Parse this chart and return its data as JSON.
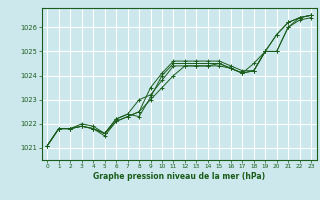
{
  "background_color": "#cce8ed",
  "plot_bg_color": "#cce8ed",
  "grid_color": "#ffffff",
  "line_color": "#1a5c1a",
  "text_color": "#1a5c1a",
  "xlabel": "Graphe pression niveau de la mer (hPa)",
  "xlim": [
    -0.5,
    23.5
  ],
  "ylim": [
    1020.5,
    1026.8
  ],
  "yticks": [
    1021,
    1022,
    1023,
    1024,
    1025,
    1026
  ],
  "xticks": [
    0,
    1,
    2,
    3,
    4,
    5,
    6,
    7,
    8,
    9,
    10,
    11,
    12,
    13,
    14,
    15,
    16,
    17,
    18,
    19,
    20,
    21,
    22,
    23
  ],
  "series": [
    [
      1021.1,
      1021.8,
      1021.8,
      1021.9,
      1021.8,
      1021.5,
      1022.1,
      1022.3,
      1022.5,
      1023.5,
      1024.1,
      1024.6,
      1024.6,
      1024.6,
      1024.6,
      1024.6,
      1024.4,
      1024.2,
      1024.2,
      1025.0,
      1025.7,
      1026.2,
      1026.4,
      1026.5
    ],
    [
      1021.1,
      1021.8,
      1021.8,
      1022.0,
      1021.9,
      1021.6,
      1022.2,
      1022.4,
      1022.3,
      1023.1,
      1024.0,
      1024.5,
      1024.5,
      1024.5,
      1024.5,
      1024.5,
      1024.3,
      1024.1,
      1024.5,
      1025.0,
      1025.0,
      1026.0,
      1026.3,
      1026.4
    ],
    [
      1021.1,
      1021.8,
      1021.8,
      1021.9,
      1021.8,
      1021.6,
      1022.2,
      1022.4,
      1023.0,
      1023.2,
      1023.8,
      1024.4,
      1024.4,
      1024.4,
      1024.4,
      1024.4,
      1024.3,
      1024.1,
      1024.2,
      1025.0,
      1025.7,
      1026.2,
      1026.4,
      1026.5
    ],
    [
      1021.1,
      1021.8,
      1021.8,
      1021.9,
      1021.8,
      1021.6,
      1022.1,
      1022.3,
      1022.5,
      1023.0,
      1023.5,
      1024.0,
      1024.4,
      1024.4,
      1024.4,
      1024.5,
      1024.3,
      1024.1,
      1024.2,
      1025.0,
      1025.0,
      1026.0,
      1026.4,
      1026.5
    ]
  ]
}
